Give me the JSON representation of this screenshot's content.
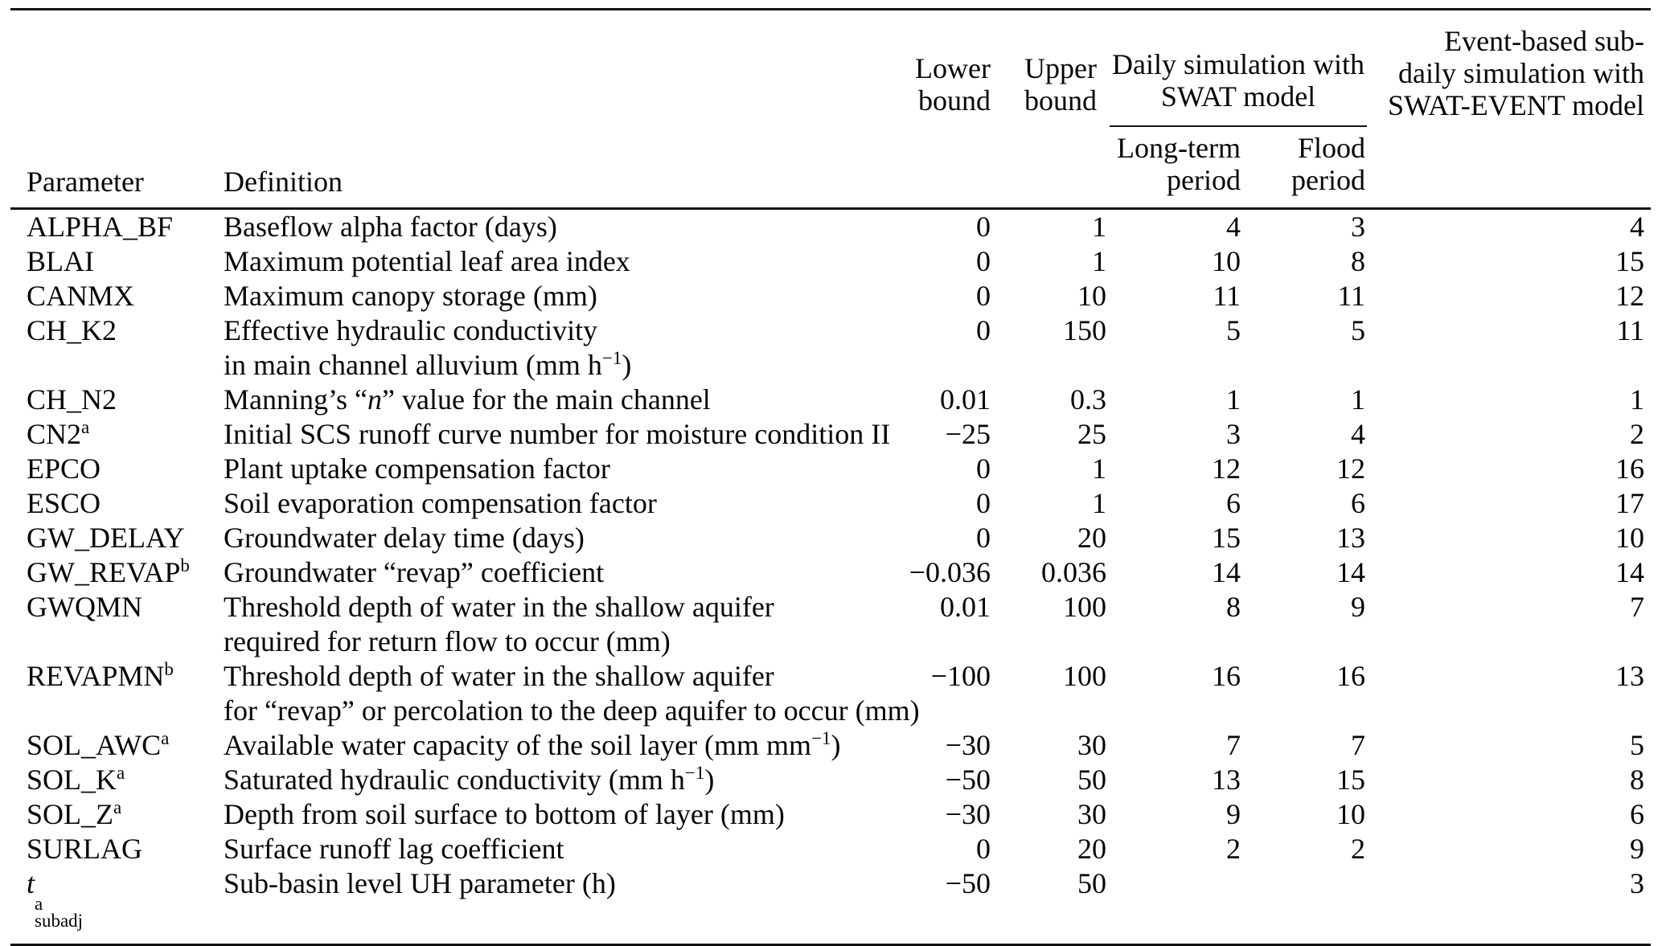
{
  "page": {
    "background": "#ffffff",
    "text_color": "#060606",
    "rule_color": "#141414"
  },
  "table": {
    "header": {
      "parameter": "Parameter",
      "definition": "Definition",
      "lower_bound": "Lower\nbound",
      "upper_bound": "Upper\nbound",
      "daily_group": "Daily simulation with\nSWAT model",
      "long_term": "Long-term\nperiod",
      "flood": "Flood\nperiod",
      "event_group": "Event-based sub-\ndaily simulation with\nSWAT-EVENT model"
    },
    "rows": [
      {
        "param": [
          {
            "t": "ALPHA_BF"
          }
        ],
        "definition": [
          [
            {
              "t": "Baseflow alpha factor (days)"
            }
          ]
        ],
        "values": {
          "lower": "0",
          "upper": "1",
          "long_term": "4",
          "flood": "3",
          "event": "4"
        }
      },
      {
        "param": [
          {
            "t": "BLAI"
          }
        ],
        "definition": [
          [
            {
              "t": "Maximum potential leaf area index"
            }
          ]
        ],
        "values": {
          "lower": "0",
          "upper": "1",
          "long_term": "10",
          "flood": "8",
          "event": "15"
        }
      },
      {
        "param": [
          {
            "t": "CANMX"
          }
        ],
        "definition": [
          [
            {
              "t": "Maximum canopy storage (mm)"
            }
          ]
        ],
        "values": {
          "lower": "0",
          "upper": "10",
          "long_term": "11",
          "flood": "11",
          "event": "12"
        }
      },
      {
        "param": [
          {
            "t": "CH_K2"
          }
        ],
        "definition": [
          [
            {
              "t": "Effective hydraulic conductivity"
            }
          ],
          [
            {
              "t": "in main channel alluvium (mm h"
            },
            {
              "sup": "−1"
            },
            {
              "t": ")"
            }
          ]
        ],
        "values": {
          "lower": "0",
          "upper": "150",
          "long_term": "5",
          "flood": "5",
          "event": "11"
        }
      },
      {
        "param": [
          {
            "t": "CH_N2"
          }
        ],
        "definition": [
          [
            {
              "t": "Manning’s “"
            },
            {
              "i": "n"
            },
            {
              "t": "” value for the main channel"
            }
          ]
        ],
        "values": {
          "lower": "0.01",
          "upper": "0.3",
          "long_term": "1",
          "flood": "1",
          "event": "1"
        }
      },
      {
        "param": [
          {
            "t": "CN2"
          },
          {
            "sup": "a"
          }
        ],
        "definition": [
          [
            {
              "t": "Initial SCS runoff curve number for moisture condition II"
            }
          ]
        ],
        "values": {
          "lower": "−25",
          "upper": "25",
          "long_term": "3",
          "flood": "4",
          "event": "2"
        }
      },
      {
        "param": [
          {
            "t": "EPCO"
          }
        ],
        "definition": [
          [
            {
              "t": "Plant uptake compensation factor"
            }
          ]
        ],
        "values": {
          "lower": "0",
          "upper": "1",
          "long_term": "12",
          "flood": "12",
          "event": "16"
        }
      },
      {
        "param": [
          {
            "t": "ESCO"
          }
        ],
        "definition": [
          [
            {
              "t": "Soil evaporation compensation factor"
            }
          ]
        ],
        "values": {
          "lower": "0",
          "upper": "1",
          "long_term": "6",
          "flood": "6",
          "event": "17"
        }
      },
      {
        "param": [
          {
            "t": "GW_DELAY"
          }
        ],
        "definition": [
          [
            {
              "t": "Groundwater delay time (days)"
            }
          ]
        ],
        "values": {
          "lower": "0",
          "upper": "20",
          "long_term": "15",
          "flood": "13",
          "event": "10"
        }
      },
      {
        "param": [
          {
            "t": "GW_REVAP"
          },
          {
            "sup": "b"
          }
        ],
        "definition": [
          [
            {
              "t": "Groundwater “revap” coefficient"
            }
          ]
        ],
        "values": {
          "lower": "−0.036",
          "upper": "0.036",
          "long_term": "14",
          "flood": "14",
          "event": "14"
        }
      },
      {
        "param": [
          {
            "t": "GWQMN"
          }
        ],
        "definition": [
          [
            {
              "t": "Threshold depth of water in the shallow aquifer"
            }
          ],
          [
            {
              "t": "required for return flow to occur (mm)"
            }
          ]
        ],
        "values": {
          "lower": "0.01",
          "upper": "100",
          "long_term": "8",
          "flood": "9",
          "event": "7"
        }
      },
      {
        "param": [
          {
            "t": "REVAPMN"
          },
          {
            "sup": "b"
          }
        ],
        "definition": [
          [
            {
              "t": "Threshold depth of water in the shallow aquifer"
            }
          ],
          [
            {
              "t": "for “revap” or percolation to the deep aquifer to occur (mm)"
            }
          ]
        ],
        "values": {
          "lower": "−100",
          "upper": "100",
          "long_term": "16",
          "flood": "16",
          "event": "13"
        }
      },
      {
        "param": [
          {
            "t": "SOL_AWC"
          },
          {
            "sup": "a"
          }
        ],
        "definition": [
          [
            {
              "t": "Available water capacity of the soil layer (mm mm"
            },
            {
              "sup": "−1"
            },
            {
              "t": ")"
            }
          ]
        ],
        "values": {
          "lower": "−30",
          "upper": "30",
          "long_term": "7",
          "flood": "7",
          "event": "5"
        }
      },
      {
        "param": [
          {
            "t": "SOL_K"
          },
          {
            "sup": "a"
          }
        ],
        "definition": [
          [
            {
              "t": "Saturated hydraulic conductivity (mm h"
            },
            {
              "sup": "−1"
            },
            {
              "t": ")"
            }
          ]
        ],
        "values": {
          "lower": "−50",
          "upper": "50",
          "long_term": "13",
          "flood": "15",
          "event": "8"
        }
      },
      {
        "param": [
          {
            "t": "SOL_Z"
          },
          {
            "sup": "a"
          }
        ],
        "definition": [
          [
            {
              "t": "Depth from soil surface to bottom of layer (mm)"
            }
          ]
        ],
        "values": {
          "lower": "−30",
          "upper": "30",
          "long_term": "9",
          "flood": "10",
          "event": "6"
        }
      },
      {
        "param": [
          {
            "t": "SURLAG"
          }
        ],
        "definition": [
          [
            {
              "t": "Surface runoff lag coefficient"
            }
          ]
        ],
        "values": {
          "lower": "0",
          "upper": "20",
          "long_term": "2",
          "flood": "2",
          "event": "9"
        }
      },
      {
        "param": [
          {
            "i": "t"
          },
          {
            "stack": {
              "sup": "a",
              "sub": "subadj"
            }
          }
        ],
        "definition": [
          [
            {
              "t": "Sub-basin level UH parameter (h)"
            }
          ]
        ],
        "values": {
          "lower": "−50",
          "upper": "50",
          "long_term": "",
          "flood": "",
          "event": "3"
        }
      }
    ]
  }
}
